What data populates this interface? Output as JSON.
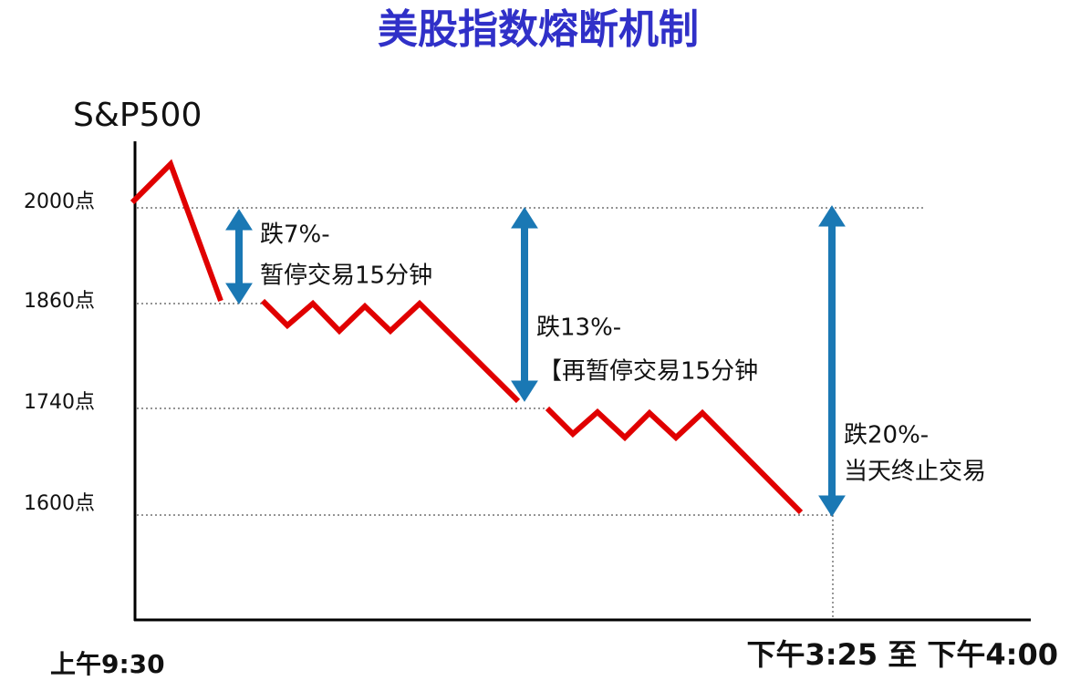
{
  "header": {
    "title": "美股指数熔断机制"
  },
  "axis": {
    "y_label": "S&P500",
    "y_ticks": [
      "2000点",
      "1860点",
      "1740点",
      "1600点"
    ],
    "x_start": "上午9:30",
    "x_end": "下午3:25 至 下午4:00"
  },
  "annotations": [
    {
      "line1": "跌7%-",
      "line2": "暂停交易15分钟"
    },
    {
      "line1": "跌13%-",
      "line2": "【再暂停交易15分钟"
    },
    {
      "line1": "跌20%-",
      "line2": "当天终止交易"
    }
  ]
}
